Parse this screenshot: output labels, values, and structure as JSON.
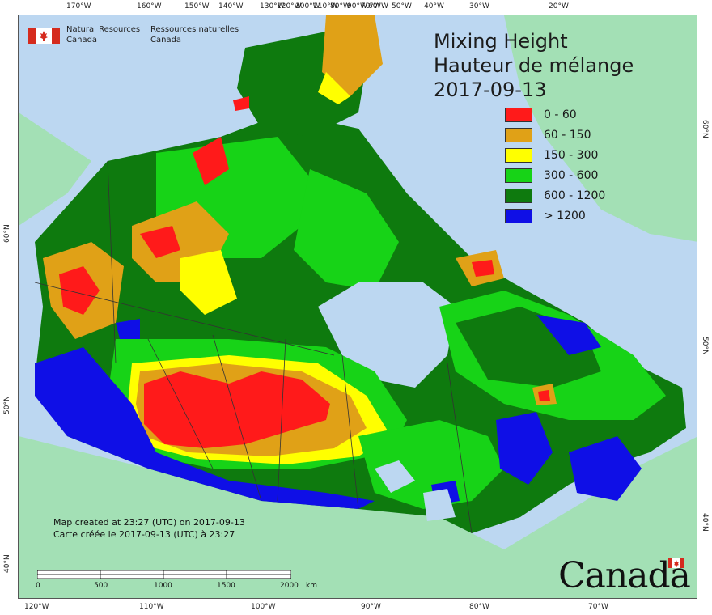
{
  "header": {
    "agency_en_line1": "Natural Resources",
    "agency_en_line2": "Canada",
    "agency_fr_line1": "Ressources naturelles",
    "agency_fr_line2": "Canada"
  },
  "title": {
    "line1": "Mixing Height",
    "line2": "Hauteur de mélange",
    "line3": "2017-09-13"
  },
  "legend": [
    {
      "label": "0 - 60",
      "color": "#ff1a1a"
    },
    {
      "label": "60 - 150",
      "color": "#e0a117"
    },
    {
      "label": "150 - 300",
      "color": "#ffff00"
    },
    {
      "label": "300 - 600",
      "color": "#17d317"
    },
    {
      "label": "600 - 1200",
      "color": "#0e7a0e"
    },
    {
      "label": "> 1200",
      "color": "#0f0fe6"
    }
  ],
  "top_ticks": [
    "170°W",
    "160°W",
    "150°W",
    "140°W",
    "130°W",
    "120°W",
    "100°W",
    "110°W",
    "80°W",
    "90°W",
    "70°W",
    "60°W",
    "50°W",
    "40°W",
    "30°W",
    "20°W"
  ],
  "bottom_ticks": [
    "120°W",
    "110°W",
    "100°W",
    "90°W",
    "80°W",
    "70°W"
  ],
  "left_ticks": [
    "60°N",
    "50°N",
    "40°N"
  ],
  "right_ticks": [
    "60°N",
    "50°N",
    "40°N"
  ],
  "credit": {
    "line1": "Map created at 23:27 (UTC) on 2017-09-13",
    "line2": "Carte créée le 2017-09-13 (UTC) à 23:27"
  },
  "scale": {
    "labels": [
      "0",
      "500",
      "1000",
      "1500",
      "2000"
    ],
    "unit": "km"
  },
  "wordmark": "Canada",
  "colors": {
    "ocean": "#bcd7f1",
    "land_other": "#a3e0b5",
    "border": "#333333"
  }
}
